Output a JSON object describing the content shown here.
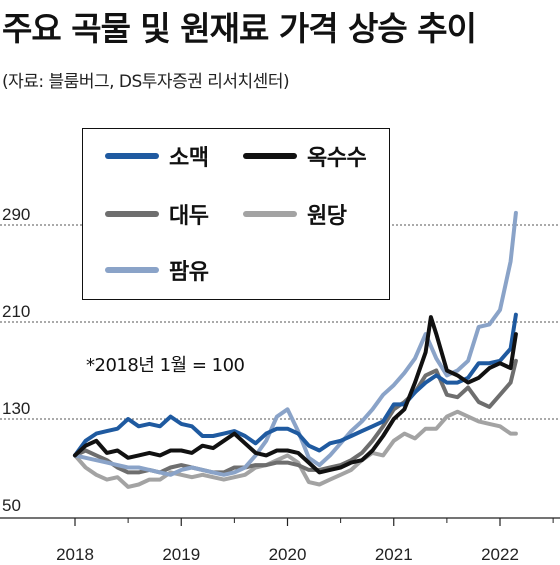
{
  "title": "주요 곡물 및 원재료 가격 상승 추이",
  "subtitle": "(자료: 블룸버그, DS투자증권 리서치센터)",
  "note": "*2018년 1월 = 100",
  "chart_data": {
    "type": "line",
    "title": "주요 곡물 및 원재료 가격 상승 추이",
    "ylim": [
      50,
      320
    ],
    "yticks": [
      50,
      130,
      210,
      290
    ],
    "xlim": [
      2018,
      2022.8
    ],
    "xticks": [
      2018,
      2019,
      2020,
      2021,
      2022
    ],
    "xtick_labels": [
      "2018",
      "2019",
      "2020",
      "2021",
      "2022"
    ],
    "grid": "dotted horizontal at 130, 210, 290",
    "legend_position": "top-left",
    "series": [
      {
        "name": "소맥",
        "color": "#1f5aa0",
        "x": [
          2018.0,
          2018.1,
          2018.2,
          2018.3,
          2018.4,
          2018.5,
          2018.6,
          2018.7,
          2018.8,
          2018.9,
          2019.0,
          2019.1,
          2019.2,
          2019.3,
          2019.4,
          2019.5,
          2019.6,
          2019.7,
          2019.8,
          2019.9,
          2020.0,
          2020.1,
          2020.2,
          2020.3,
          2020.4,
          2020.5,
          2020.6,
          2020.7,
          2020.8,
          2020.9,
          2021.0,
          2021.1,
          2021.2,
          2021.3,
          2021.4,
          2021.5,
          2021.6,
          2021.7,
          2021.8,
          2021.9,
          2022.0,
          2022.1,
          2022.15
        ],
        "values": [
          100,
          112,
          118,
          120,
          122,
          130,
          124,
          126,
          124,
          132,
          126,
          124,
          116,
          116,
          118,
          120,
          116,
          110,
          118,
          122,
          122,
          118,
          108,
          104,
          110,
          112,
          116,
          120,
          124,
          128,
          142,
          142,
          152,
          160,
          166,
          160,
          160,
          164,
          176,
          176,
          178,
          188,
          216
        ]
      },
      {
        "name": "옥수수",
        "color": "#111111",
        "x": [
          2018.0,
          2018.1,
          2018.2,
          2018.3,
          2018.4,
          2018.5,
          2018.6,
          2018.7,
          2018.8,
          2018.9,
          2019.0,
          2019.1,
          2019.2,
          2019.3,
          2019.4,
          2019.5,
          2019.6,
          2019.7,
          2019.8,
          2019.9,
          2020.0,
          2020.1,
          2020.2,
          2020.3,
          2020.4,
          2020.5,
          2020.6,
          2020.7,
          2020.8,
          2020.9,
          2021.0,
          2021.1,
          2021.2,
          2021.3,
          2021.35,
          2021.4,
          2021.5,
          2021.6,
          2021.7,
          2021.8,
          2021.9,
          2022.0,
          2022.1,
          2022.15
        ],
        "values": [
          100,
          108,
          112,
          102,
          104,
          98,
          100,
          102,
          100,
          104,
          104,
          102,
          108,
          106,
          112,
          118,
          110,
          102,
          100,
          104,
          104,
          102,
          94,
          86,
          88,
          90,
          94,
          96,
          104,
          116,
          130,
          138,
          160,
          185,
          214,
          200,
          170,
          166,
          160,
          164,
          172,
          176,
          172,
          200
        ]
      },
      {
        "name": "대두",
        "color": "#6e6e6e",
        "x": [
          2018.0,
          2018.1,
          2018.2,
          2018.3,
          2018.4,
          2018.5,
          2018.6,
          2018.7,
          2018.8,
          2018.9,
          2019.0,
          2019.1,
          2019.2,
          2019.3,
          2019.4,
          2019.5,
          2019.6,
          2019.7,
          2019.8,
          2019.9,
          2020.0,
          2020.1,
          2020.2,
          2020.3,
          2020.4,
          2020.5,
          2020.6,
          2020.7,
          2020.8,
          2020.9,
          2021.0,
          2021.1,
          2021.2,
          2021.3,
          2021.4,
          2021.5,
          2021.6,
          2021.7,
          2021.8,
          2021.9,
          2022.0,
          2022.1,
          2022.15
        ],
        "values": [
          100,
          104,
          100,
          96,
          90,
          86,
          86,
          88,
          86,
          90,
          92,
          90,
          88,
          86,
          86,
          90,
          90,
          92,
          92,
          94,
          94,
          92,
          88,
          88,
          90,
          92,
          96,
          102,
          112,
          124,
          138,
          144,
          152,
          166,
          170,
          150,
          148,
          156,
          144,
          140,
          150,
          160,
          178
        ]
      },
      {
        "name": "원당",
        "color": "#a3a3a3",
        "x": [
          2018.0,
          2018.1,
          2018.2,
          2018.3,
          2018.4,
          2018.5,
          2018.6,
          2018.7,
          2018.8,
          2018.9,
          2019.0,
          2019.1,
          2019.2,
          2019.3,
          2019.4,
          2019.5,
          2019.6,
          2019.7,
          2019.8,
          2019.9,
          2020.0,
          2020.1,
          2020.2,
          2020.3,
          2020.4,
          2020.5,
          2020.6,
          2020.7,
          2020.8,
          2020.9,
          2021.0,
          2021.1,
          2021.2,
          2021.3,
          2021.4,
          2021.5,
          2021.6,
          2021.7,
          2021.8,
          2021.9,
          2022.0,
          2022.1,
          2022.15
        ],
        "values": [
          100,
          90,
          84,
          80,
          82,
          74,
          76,
          80,
          80,
          86,
          84,
          82,
          84,
          82,
          80,
          82,
          84,
          90,
          92,
          96,
          100,
          94,
          78,
          76,
          80,
          84,
          88,
          96,
          102,
          100,
          112,
          118,
          114,
          122,
          122,
          132,
          136,
          132,
          128,
          126,
          124,
          118,
          118
        ]
      },
      {
        "name": "팜유",
        "color": "#8aa3c8",
        "x": [
          2018.0,
          2018.1,
          2018.2,
          2018.3,
          2018.4,
          2018.5,
          2018.6,
          2018.7,
          2018.8,
          2018.9,
          2019.0,
          2019.1,
          2019.2,
          2019.3,
          2019.4,
          2019.5,
          2019.6,
          2019.7,
          2019.8,
          2019.9,
          2020.0,
          2020.1,
          2020.2,
          2020.3,
          2020.4,
          2020.5,
          2020.6,
          2020.7,
          2020.8,
          2020.9,
          2021.0,
          2021.1,
          2021.2,
          2021.3,
          2021.4,
          2021.5,
          2021.6,
          2021.7,
          2021.8,
          2021.9,
          2022.0,
          2022.1,
          2022.15
        ],
        "values": [
          100,
          98,
          96,
          94,
          92,
          90,
          90,
          88,
          86,
          84,
          88,
          90,
          88,
          86,
          84,
          86,
          90,
          100,
          112,
          132,
          138,
          120,
          98,
          92,
          100,
          110,
          120,
          128,
          138,
          150,
          158,
          168,
          180,
          200,
          180,
          166,
          170,
          178,
          206,
          208,
          220,
          260,
          300
        ]
      }
    ]
  }
}
